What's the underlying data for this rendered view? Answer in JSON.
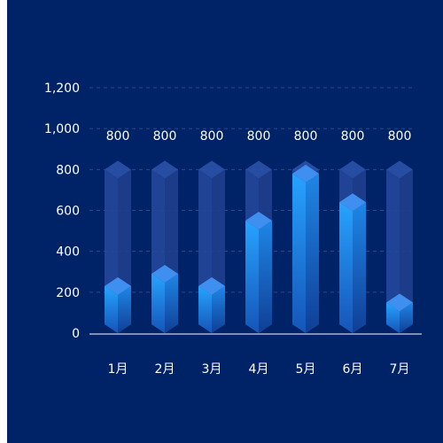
{
  "chart_data": {
    "type": "bar",
    "categories": [
      "1月",
      "2月",
      "3月",
      "4月",
      "5月",
      "6月",
      "7月"
    ],
    "values": [
      230,
      290,
      230,
      550,
      780,
      640,
      150
    ],
    "background_values": [
      800,
      800,
      800,
      800,
      800,
      800,
      800
    ],
    "background_labels": [
      "800",
      "800",
      "800",
      "800",
      "800",
      "800",
      "800"
    ],
    "y_ticks": [
      "0",
      "200",
      "400",
      "600",
      "800",
      "1,000",
      "1,200"
    ],
    "y_tick_values": [
      0,
      200,
      400,
      600,
      800,
      1000,
      1200
    ],
    "ylim": [
      0,
      1200
    ],
    "grid": true,
    "title": "",
    "xlabel": "",
    "ylabel": "",
    "colors": {
      "background": "#002266",
      "bar_light": "#27A3FF",
      "bar_dark": "#1555B8",
      "bar_top": "#3E8FF0",
      "track": "#24479A",
      "text": "#FFFFFF",
      "grid": "#2C4A8C"
    }
  }
}
